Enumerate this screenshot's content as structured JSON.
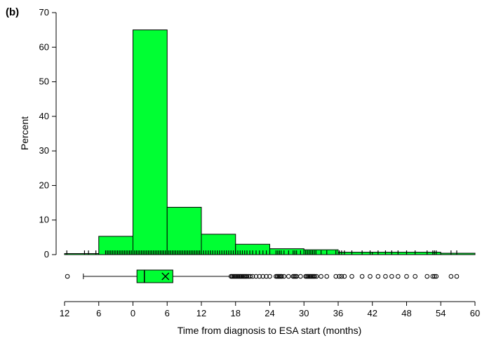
{
  "panel_label": "(b)",
  "chart_data": {
    "type": "histogram",
    "title": "",
    "xlabel": "Time from diagnosis to ESA start (months)",
    "ylabel": "Percent",
    "xlim": [
      -12,
      60
    ],
    "ylim": [
      0,
      70
    ],
    "x_tick_labels": [
      "12",
      "6",
      "0",
      "6",
      "12",
      "18",
      "24",
      "30",
      "36",
      "42",
      "48",
      "54",
      "60"
    ],
    "y_ticks": [
      0,
      10,
      20,
      30,
      40,
      50,
      60,
      70
    ],
    "bar_color": "#00ff33",
    "bins": [
      {
        "start": -12,
        "end": -6,
        "percent": 0.3
      },
      {
        "start": -6,
        "end": 0,
        "percent": 5.3
      },
      {
        "start": 0,
        "end": 6,
        "percent": 65
      },
      {
        "start": 6,
        "end": 12,
        "percent": 13.7
      },
      {
        "start": 12,
        "end": 18,
        "percent": 5.9
      },
      {
        "start": 18,
        "end": 24,
        "percent": 3.0
      },
      {
        "start": 24,
        "end": 30,
        "percent": 1.7
      },
      {
        "start": 30,
        "end": 36,
        "percent": 1.4
      },
      {
        "start": 36,
        "end": 42,
        "percent": 0.7
      },
      {
        "start": 42,
        "end": 48,
        "percent": 0.7
      },
      {
        "start": 48,
        "end": 54,
        "percent": 0.7
      },
      {
        "start": 54,
        "end": 60,
        "percent": 0.4
      }
    ],
    "boxplot": {
      "whisker_low": -8.7,
      "q1": 0.7,
      "median": 2.0,
      "q3": 7.0,
      "mean": 5.7,
      "whisker_high": 17.0
    },
    "outliers": [
      -11.5,
      17.2,
      17.4,
      17.6,
      17.8,
      18.0,
      18.2,
      18.4,
      18.6,
      18.8,
      19.0,
      19.2,
      19.4,
      19.6,
      19.8,
      20.0,
      20.3,
      20.6,
      21.0,
      21.6,
      22.2,
      22.8,
      23.4,
      24.0,
      25.1,
      25.3,
      25.5,
      25.7,
      25.9,
      26.1,
      26.5,
      27.3,
      28.1,
      28.3,
      28.5,
      28.7,
      29.4,
      30.3,
      30.5,
      30.7,
      30.9,
      31.1,
      31.3,
      31.5,
      31.7,
      31.9,
      32.2,
      33.0,
      34.0,
      35.6,
      36.2,
      36.6,
      37.1,
      38.4,
      40.2,
      41.6,
      43.0,
      44.3,
      45.4,
      46.5,
      48.0,
      49.5,
      51.6,
      52.6,
      52.9,
      53.2,
      55.8,
      56.8
    ],
    "rug": [
      -11.6,
      -8.5,
      -7.8,
      -6.5,
      -4.8,
      -4.5,
      -4.2,
      -3.9,
      -3.6,
      -3.3,
      -3.0,
      -2.7,
      -2.4,
      -2.1,
      -1.8,
      -1.5,
      -1.2,
      -0.9,
      -0.6,
      -0.3,
      0.0,
      0.3,
      0.6,
      0.9,
      1.2,
      1.5,
      1.8,
      2.1,
      2.4,
      2.7,
      3.0,
      3.3,
      3.6,
      3.9,
      4.2,
      4.5,
      4.8,
      5.1,
      5.4,
      5.7,
      6.0,
      6.3,
      6.6,
      6.9,
      7.2,
      7.5,
      7.8,
      8.1,
      8.4,
      8.7,
      9.0,
      9.3,
      9.6,
      9.9,
      10.2,
      10.5,
      10.8,
      11.1,
      11.4,
      11.7,
      12.0,
      12.4,
      12.8,
      13.2,
      13.6,
      14.0,
      14.4,
      14.8,
      15.2,
      15.6,
      16.0,
      16.4,
      16.8,
      17.2,
      17.6,
      18.0,
      18.4,
      18.8,
      19.2,
      19.6,
      20.0,
      20.5,
      21.0,
      21.6,
      22.2,
      22.8,
      23.4,
      24.0,
      25.1,
      25.4,
      25.7,
      26.0,
      26.5,
      27.3,
      28.1,
      28.4,
      28.7,
      29.4,
      30.3,
      30.6,
      30.9,
      31.2,
      31.5,
      31.8,
      32.1,
      33.0,
      34.0,
      35.6,
      36.2,
      36.6,
      37.1,
      38.4,
      40.2,
      41.6,
      43.0,
      44.3,
      45.4,
      46.5,
      48.0,
      49.5,
      51.6,
      52.6,
      52.9,
      53.2,
      55.8,
      56.8
    ]
  }
}
